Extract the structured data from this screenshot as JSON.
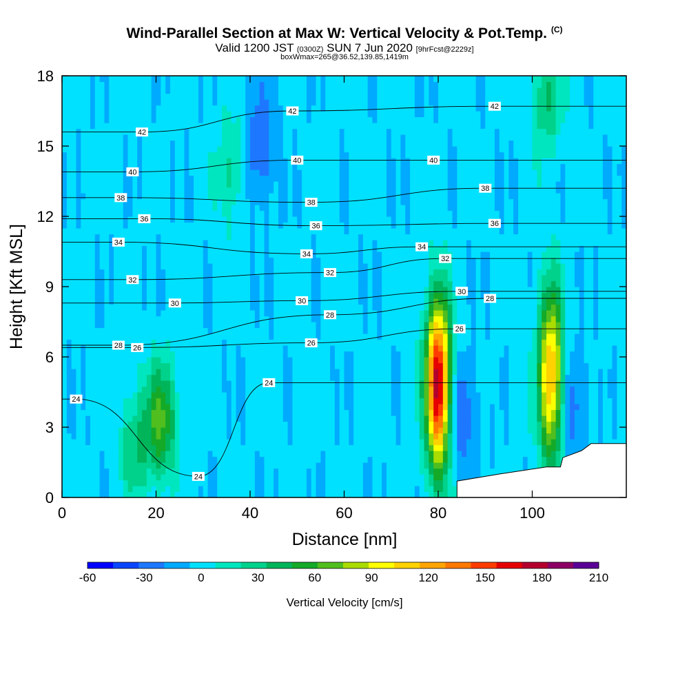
{
  "header": {
    "title_main": "Wind-Parallel Section at Max W: Vertical Velocity & Pot.Temp.",
    "title_tag": "(C)",
    "valid_prefix": "Valid 1200 JST",
    "valid_utc": "(0300Z)",
    "valid_date": "SUN 7 Jun 2020",
    "forecast": "[9hrFcst@2229z]",
    "box_info": "boxWmax=265@36.52,139.85,1419m"
  },
  "chart_data": {
    "type": "heatmap",
    "xlabel": "Distance [nm]",
    "ylabel": "Height [Kft MSL]",
    "xlim": [
      0,
      120
    ],
    "ylim": [
      0,
      18
    ],
    "xticks": [
      0,
      20,
      40,
      60,
      80,
      100
    ],
    "yticks": [
      0,
      3,
      6,
      9,
      12,
      15,
      18
    ],
    "colorbar": {
      "label": "Vertical Velocity [cm/s]",
      "min": -60,
      "max": 210,
      "step": 15,
      "tick_values": [
        -60,
        -30,
        0,
        30,
        60,
        90,
        120,
        150,
        180,
        210
      ],
      "colors": [
        "#0000ff",
        "#0a46ff",
        "#1e78ff",
        "#00aaff",
        "#00e1ff",
        "#00e6be",
        "#00d28c",
        "#00b45a",
        "#14aa28",
        "#50be1e",
        "#aadc00",
        "#ffff00",
        "#ffd200",
        "#ffa500",
        "#ff7800",
        "#ff3c00",
        "#e60000",
        "#b4002d",
        "#8c0064",
        "#5a0096"
      ]
    },
    "contour_field": "Potential temperature (C)",
    "contour_labels": [
      {
        "text": "42",
        "x": 17,
        "y": 15.6
      },
      {
        "text": "42",
        "x": 49,
        "y": 16.5
      },
      {
        "text": "42",
        "x": 92,
        "y": 16.7
      },
      {
        "text": "40",
        "x": 15,
        "y": 13.9
      },
      {
        "text": "40",
        "x": 50,
        "y": 14.4
      },
      {
        "text": "40",
        "x": 79,
        "y": 14.4
      },
      {
        "text": "38",
        "x": 12.5,
        "y": 12.8
      },
      {
        "text": "38",
        "x": 53,
        "y": 12.6
      },
      {
        "text": "38",
        "x": 90,
        "y": 13.2
      },
      {
        "text": "36",
        "x": 17.5,
        "y": 11.9
      },
      {
        "text": "36",
        "x": 54,
        "y": 11.6
      },
      {
        "text": "36",
        "x": 92,
        "y": 11.7
      },
      {
        "text": "34",
        "x": 12,
        "y": 10.9
      },
      {
        "text": "34",
        "x": 52,
        "y": 10.4
      },
      {
        "text": "34",
        "x": 76.5,
        "y": 10.7
      },
      {
        "text": "32",
        "x": 15,
        "y": 9.3
      },
      {
        "text": "32",
        "x": 57,
        "y": 9.6
      },
      {
        "text": "32",
        "x": 81.5,
        "y": 10.2
      },
      {
        "text": "30",
        "x": 24,
        "y": 8.3
      },
      {
        "text": "30",
        "x": 51,
        "y": 8.4
      },
      {
        "text": "30",
        "x": 85,
        "y": 8.8
      },
      {
        "text": "28",
        "x": 12,
        "y": 6.5
      },
      {
        "text": "28",
        "x": 57,
        "y": 7.8
      },
      {
        "text": "28",
        "x": 91,
        "y": 8.5
      },
      {
        "text": "26",
        "x": 16,
        "y": 6.4
      },
      {
        "text": "26",
        "x": 53,
        "y": 6.6
      },
      {
        "text": "26",
        "x": 84.5,
        "y": 7.2
      },
      {
        "text": "24",
        "x": 3,
        "y": 4.2
      },
      {
        "text": "24",
        "x": 44,
        "y": 4.9
      },
      {
        "text": "24",
        "x": 29,
        "y": 0.9
      }
    ],
    "velocity_features": [
      {
        "x": 80,
        "y": 4.8,
        "peak": 200,
        "note": "strong updraft"
      },
      {
        "x": 104,
        "y": 5.2,
        "peak": 140,
        "note": "strong updraft"
      },
      {
        "x": 21,
        "y": 3.3,
        "peak": 75,
        "note": "updraft"
      },
      {
        "x": 15.5,
        "y": 2.2,
        "peak": 40,
        "note": "updraft"
      },
      {
        "x": 36,
        "y": 14,
        "peak": 30,
        "note": "upper updraft"
      },
      {
        "x": 103,
        "y": 17,
        "peak": 40,
        "note": "upper updraft"
      },
      {
        "x": 85,
        "y": 3.5,
        "peak": -35,
        "note": "downdraft"
      },
      {
        "x": 42,
        "y": 15,
        "peak": -35,
        "note": "upper downdraft"
      },
      {
        "x": 108.5,
        "y": 4,
        "peak": -30,
        "note": "downdraft"
      }
    ],
    "terrain": [
      [
        84,
        0.7
      ],
      [
        93,
        1.0
      ],
      [
        103,
        1.3
      ],
      [
        106,
        1.3
      ],
      [
        106.5,
        1.7
      ],
      [
        110.5,
        2.0
      ],
      [
        112.5,
        2.3
      ],
      [
        115,
        2.3
      ],
      [
        120,
        2.3
      ]
    ]
  }
}
